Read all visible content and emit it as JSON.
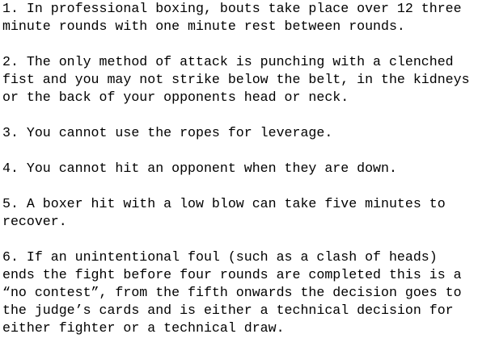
{
  "rules": [
    {
      "lines": [
        "1. In professional boxing, bouts take place over 12 three",
        "minute rounds with one minute rest between rounds."
      ]
    },
    {
      "lines": [
        "2. The only method of attack is punching with a clenched",
        "fist and you may not strike below the belt, in the kidneys",
        "or the back of your opponents head or neck."
      ]
    },
    {
      "lines": [
        "3. You cannot use the ropes for leverage."
      ]
    },
    {
      "lines": [
        "4. You cannot hit an opponent when they are down."
      ]
    },
    {
      "lines": [
        "5. A boxer hit with a low blow can take five minutes to",
        "recover."
      ]
    },
    {
      "lines": [
        "6. If an unintentional foul (such as a clash of heads)",
        "ends the fight before four rounds are completed this is a",
        "“no contest”, from the fifth onwards the decision goes to",
        "the judge’s cards and is either a technical decision for",
        "either fighter or a technical draw."
      ]
    }
  ]
}
